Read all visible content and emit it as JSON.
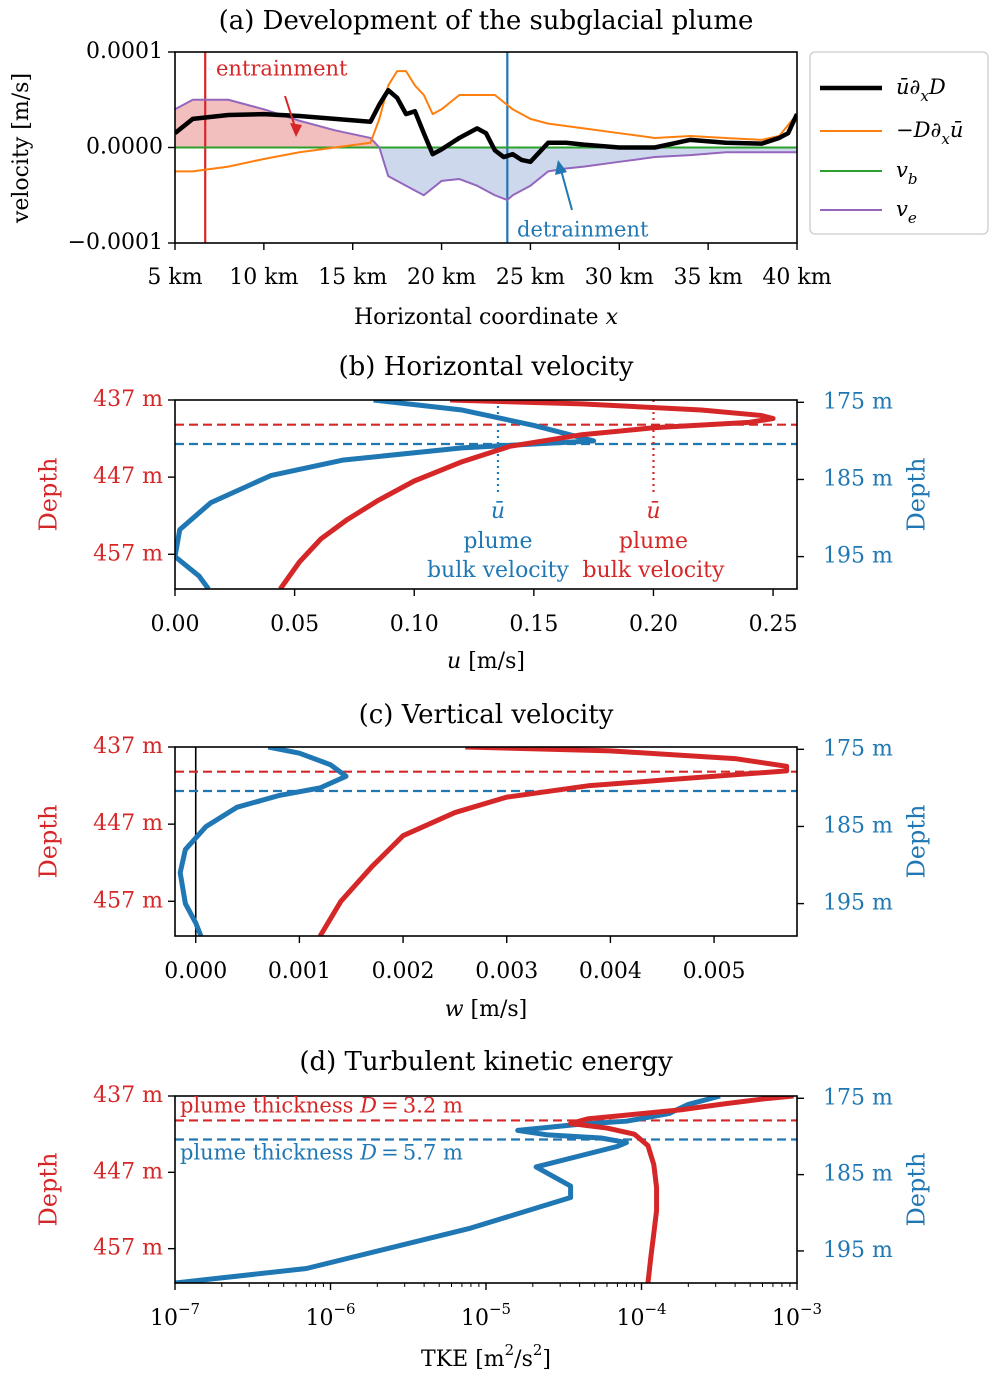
{
  "colors": {
    "red": "#d62728",
    "blue": "#1f77b4",
    "orange": "#ff7f0e",
    "green": "#2ca02c",
    "purple": "#9467bd",
    "black": "#000000"
  },
  "chart_data": [
    {
      "id": "a",
      "type": "line",
      "title": "(a) Development of the subglacial plume",
      "xlabel": "Horizontal coordinate x",
      "ylabel": "velocity [m/s]",
      "xlim": [
        5,
        40
      ],
      "ylim": [
        -0.0001,
        0.0001
      ],
      "xticks": [
        5,
        10,
        15,
        20,
        25,
        30,
        35,
        40
      ],
      "xtick_labels": [
        "5 km",
        "10 km",
        "15 km",
        "20 km",
        "25 km",
        "30 km",
        "35 km",
        "40 km"
      ],
      "yticks": [
        0.0001,
        0.0,
        -0.0001
      ],
      "ytick_labels": [
        "0.0001",
        "0.0000",
        "−0.0001"
      ],
      "vlines": [
        {
          "x": 6.7,
          "color": "red"
        },
        {
          "x": 23.7,
          "color": "blue"
        }
      ],
      "annotations": [
        {
          "text": "entrainment",
          "color": "red"
        },
        {
          "text": "detrainment",
          "color": "blue"
        }
      ],
      "legend_position": "right",
      "series": [
        {
          "name": "ū∂xD",
          "color": "black",
          "x": [
            5,
            6,
            8,
            10,
            12,
            14,
            16,
            16.5,
            17,
            17.5,
            18,
            18.5,
            19,
            19.5,
            20,
            21,
            22,
            22.5,
            23,
            23.5,
            24,
            24.5,
            25,
            25.5,
            26,
            27,
            28,
            30,
            32,
            34,
            36,
            38,
            39,
            39.5,
            40
          ],
          "y": [
            1.5e-05,
            3e-05,
            3.4e-05,
            3.5e-05,
            3.3e-05,
            3e-05,
            2.7e-05,
            4.5e-05,
            6e-05,
            5.2e-05,
            3.5e-05,
            3.8e-05,
            1.5e-05,
            -7e-06,
            -2e-06,
            1e-05,
            2e-05,
            1.5e-05,
            -3e-06,
            -1e-05,
            -7e-06,
            -1.3e-05,
            -1.5e-05,
            -5e-06,
            5e-06,
            5e-06,
            3e-06,
            0.0,
            0.0,
            8e-06,
            5e-06,
            4e-06,
            1e-05,
            1.5e-05,
            3.5e-05
          ]
        },
        {
          "name": "−D∂xū",
          "color": "orange",
          "x": [
            5,
            6,
            8,
            10,
            12,
            14,
            16,
            16.5,
            17,
            17.5,
            18,
            18.5,
            19,
            19.5,
            20,
            21,
            22,
            23,
            24,
            25,
            26,
            28,
            30,
            32,
            34,
            36,
            38,
            39,
            40
          ],
          "y": [
            -2.5e-05,
            -2.5e-05,
            -2e-05,
            -1.2e-05,
            -5e-06,
            0.0,
            5e-06,
            3e-05,
            6.5e-05,
            8e-05,
            8e-05,
            6.5e-05,
            5.5e-05,
            3.5e-05,
            4e-05,
            5.5e-05,
            5.5e-05,
            5.5e-05,
            4e-05,
            3e-05,
            2.5e-05,
            2e-05,
            1.5e-05,
            1e-05,
            1.2e-05,
            1e-05,
            8e-06,
            1.2e-05,
            3.5e-05
          ]
        },
        {
          "name": "v_b",
          "color": "green",
          "x": [
            5,
            40
          ],
          "y": [
            0.0,
            0.0
          ]
        },
        {
          "name": "v_e",
          "color": "purple",
          "x": [
            5,
            6,
            8,
            10,
            12,
            14,
            16,
            16.5,
            17,
            18,
            19,
            20,
            21,
            22,
            23,
            23.7,
            24,
            25,
            26,
            27,
            28,
            30,
            32,
            34,
            36,
            38,
            40
          ],
          "y": [
            4e-05,
            5e-05,
            5e-05,
            4e-05,
            2.8e-05,
            1.8e-05,
            1e-05,
            0.0,
            -3e-05,
            -4e-05,
            -5e-05,
            -3.5e-05,
            -3.3e-05,
            -4e-05,
            -5e-05,
            -5.5e-05,
            -5e-05,
            -4e-05,
            -2.5e-05,
            -2.2e-05,
            -2e-05,
            -1.5e-05,
            -1e-05,
            -8e-06,
            -5e-06,
            -5e-06,
            -5e-06
          ]
        }
      ]
    },
    {
      "id": "b",
      "type": "line",
      "title": "(b) Horizontal velocity",
      "xlabel": "u [m/s]",
      "ylabel_left": "Depth",
      "ylabel_right": "Depth",
      "xlim": [
        0,
        0.26
      ],
      "xticks": [
        0,
        0.05,
        0.1,
        0.15,
        0.2,
        0.25
      ],
      "xtick_labels": [
        "0.00",
        "0.05",
        "0.10",
        "0.15",
        "0.20",
        "0.25"
      ],
      "ylim_left": [
        461.5,
        437
      ],
      "ylim_right": [
        199.2,
        174.7
      ],
      "yticks_left": [
        437,
        447,
        457
      ],
      "ytick_labels_left": [
        "437 m",
        "447 m",
        "457 m"
      ],
      "yticks_right": [
        175,
        185,
        195
      ],
      "ytick_labels_right": [
        "175 m",
        "185 m",
        "195 m"
      ],
      "hlines": [
        {
          "depth": 440.2,
          "axis": "left",
          "color": "red"
        },
        {
          "depth": 180.4,
          "axis": "right",
          "color": "blue"
        }
      ],
      "bulk_lines": [
        {
          "x": 0.2,
          "color": "red"
        },
        {
          "x": 0.135,
          "color": "blue"
        }
      ],
      "annotations": [
        {
          "symbol": "ū",
          "lines": [
            "plume",
            "bulk velocity"
          ],
          "color": "blue"
        },
        {
          "symbol": "ū",
          "lines": [
            "plume",
            "bulk velocity"
          ],
          "color": "red"
        }
      ],
      "series": [
        {
          "axis": "left",
          "color": "red",
          "x": [
            0.115,
            0.17,
            0.22,
            0.245,
            0.25,
            0.24,
            0.2,
            0.17,
            0.14,
            0.12,
            0.1,
            0.085,
            0.072,
            0.061,
            0.052,
            0.044
          ],
          "y": [
            437.0,
            437.5,
            438.3,
            439.0,
            439.4,
            439.9,
            440.6,
            441.5,
            443.0,
            445.0,
            447.5,
            450.0,
            452.5,
            455.0,
            458.0,
            461.5
          ]
        },
        {
          "axis": "right",
          "color": "blue",
          "x": [
            0.083,
            0.12,
            0.15,
            0.175,
            0.12,
            0.07,
            0.04,
            0.015,
            0.002,
            0.0,
            0.01,
            0.014
          ],
          "y": [
            174.7,
            176.0,
            178.0,
            180.0,
            180.9,
            182.5,
            184.5,
            188.0,
            191.5,
            195.0,
            197.5,
            199.2
          ]
        }
      ]
    },
    {
      "id": "c",
      "type": "line",
      "title": "(c) Vertical velocity",
      "xlabel": "w [m/s]",
      "ylabel_left": "Depth",
      "ylabel_right": "Depth",
      "xlim": [
        -0.0002,
        0.0058
      ],
      "xticks": [
        0,
        0.001,
        0.002,
        0.003,
        0.004,
        0.005
      ],
      "xtick_labels": [
        "0.000",
        "0.001",
        "0.002",
        "0.003",
        "0.004",
        "0.005"
      ],
      "ylim_left": [
        461.5,
        437
      ],
      "ylim_right": [
        199.2,
        174.7
      ],
      "yticks_left": [
        437,
        447,
        457
      ],
      "ytick_labels_left": [
        "437 m",
        "447 m",
        "457 m"
      ],
      "yticks_right": [
        175,
        185,
        195
      ],
      "ytick_labels_right": [
        "175 m",
        "185 m",
        "195 m"
      ],
      "vline": 0,
      "hlines": [
        {
          "depth": 440.2,
          "axis": "left",
          "color": "red"
        },
        {
          "depth": 180.4,
          "axis": "right",
          "color": "blue"
        }
      ],
      "series": [
        {
          "axis": "left",
          "color": "red",
          "x": [
            0.0026,
            0.004,
            0.0052,
            0.0057,
            0.0057,
            0.0052,
            0.0045,
            0.0038,
            0.003,
            0.0025,
            0.002,
            0.0017,
            0.0014,
            0.0012
          ],
          "y": [
            437.0,
            437.5,
            438.5,
            439.5,
            440.1,
            440.6,
            441.3,
            442.0,
            443.5,
            445.5,
            448.5,
            452.5,
            457.0,
            461.5
          ]
        },
        {
          "axis": "right",
          "color": "blue",
          "x": [
            0.0007,
            0.001,
            0.0013,
            0.00145,
            0.0012,
            0.0008,
            0.0004,
            0.0001,
            -0.0001,
            -0.00015,
            -0.0001,
            0.0,
            5e-05
          ],
          "y": [
            174.7,
            175.5,
            177.0,
            178.5,
            180.0,
            181.0,
            182.5,
            185.0,
            188.0,
            191.0,
            195.0,
            197.5,
            199.2
          ]
        }
      ]
    },
    {
      "id": "d",
      "type": "line",
      "title": "(d) Turbulent kinetic energy",
      "xlabel": "TKE [m²/s²]",
      "ylabel_left": "Depth",
      "ylabel_right": "Depth",
      "xscale": "log",
      "xlim": [
        1e-07,
        0.001
      ],
      "xticks": [
        1e-07,
        1e-06,
        1e-05,
        0.0001,
        0.001
      ],
      "xtick_bases": [
        "10",
        "10",
        "10",
        "10",
        "10"
      ],
      "xtick_exps": [
        "−7",
        "−6",
        "−5",
        "−4",
        "−3"
      ],
      "ylim_left": [
        461.5,
        437
      ],
      "ylim_right": [
        199.2,
        174.7
      ],
      "yticks_left": [
        437,
        447,
        457
      ],
      "ytick_labels_left": [
        "437 m",
        "447 m",
        "457 m"
      ],
      "yticks_right": [
        175,
        185,
        195
      ],
      "ytick_labels_right": [
        "175 m",
        "185 m",
        "195 m"
      ],
      "hlines": [
        {
          "depth": 440.2,
          "axis": "left",
          "color": "red",
          "label": "plume thickness D = 3.2 m"
        },
        {
          "depth": 180.4,
          "axis": "right",
          "color": "blue",
          "label": "plume thickness D = 5.7 m"
        }
      ],
      "series": [
        {
          "axis": "left",
          "color": "red",
          "x": [
            0.00095,
            0.0006,
            0.00035,
            0.00018,
            8e-05,
            4.5e-05,
            3.5e-05,
            6e-05,
            9e-05,
            0.00011,
            0.00012,
            0.000125,
            0.000125,
            0.00012,
            0.000115,
            0.00011
          ],
          "y": [
            437.0,
            437.4,
            438.0,
            438.8,
            439.5,
            440.0,
            440.6,
            441.2,
            442.0,
            443.5,
            446.0,
            449.0,
            452.0,
            455.0,
            458.0,
            461.5
          ]
        },
        {
          "axis": "right",
          "color": "blue",
          "x": [
            0.00032,
            0.0002,
            0.00015,
            8e-05,
            4e-05,
            1.6e-05,
            2.5e-05,
            5.5e-05,
            8e-05,
            7e-05,
            2.1e-05,
            3.5e-05,
            3.5e-05,
            8e-06,
            7e-07,
            1e-07
          ],
          "y": [
            174.7,
            175.8,
            177.0,
            178.0,
            178.4,
            179.2,
            179.8,
            180.2,
            180.8,
            181.3,
            184.0,
            186.5,
            188.0,
            192.0,
            197.3,
            199.2
          ]
        }
      ]
    }
  ]
}
